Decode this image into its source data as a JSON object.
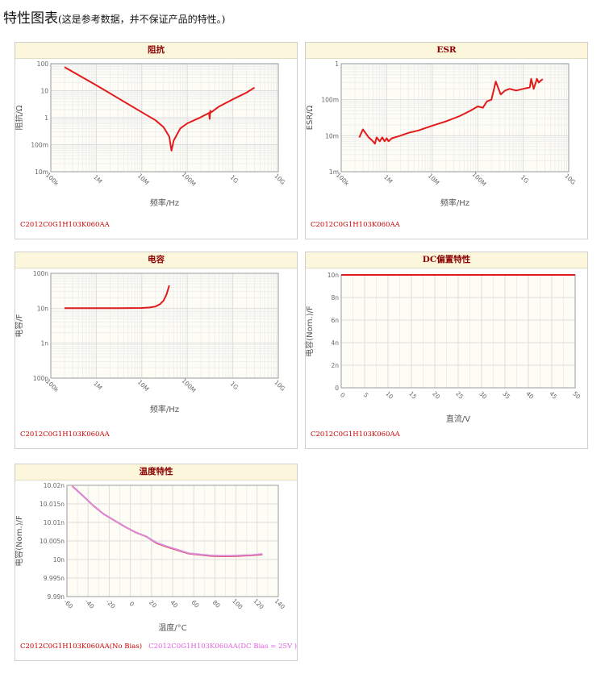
{
  "page": {
    "title": "特性图表",
    "subtitle": "(这是参考数据，并不保证产品的特性。)"
  },
  "colors": {
    "red": "#e11b1b",
    "pink": "#d98bd9",
    "grid": "#dddddd",
    "plot_bg": "#fefdf5"
  },
  "chart_data": [
    {
      "id": "impedance",
      "type": "line",
      "title": "阻抗",
      "xlabel": "频率/Hz",
      "ylabel": "阻抗/Ω",
      "xscale": "log",
      "yscale": "log",
      "xlim": [
        100000,
        10000000000
      ],
      "ylim": [
        0.01,
        100
      ],
      "xticks": [
        100000,
        1000000,
        10000000,
        100000000,
        1000000000,
        10000000000
      ],
      "xtick_labels": [
        "100k",
        "1M",
        "10M",
        "100M",
        "1G",
        "10G"
      ],
      "yticks": [
        0.01,
        0.1,
        1,
        10,
        100
      ],
      "ytick_labels": [
        "10m",
        "100m",
        "1",
        "10",
        "100"
      ],
      "series": [
        {
          "color": "#e11b1b",
          "x": [
            200000,
            1000000,
            3000000,
            10000000,
            20000000,
            30000000,
            40000000,
            45000000,
            50000000,
            70000000,
            100000000,
            200000000,
            300000000,
            310000000,
            320000000,
            330000000,
            500000000,
            1000000000,
            2000000000,
            3000000000
          ],
          "y": [
            75,
            16,
            5.3,
            1.6,
            0.8,
            0.45,
            0.2,
            0.06,
            0.14,
            0.4,
            0.62,
            1.05,
            1.5,
            0.9,
            1.8,
            1.55,
            2.6,
            4.8,
            8.5,
            13
          ]
        }
      ],
      "part_number": "C2012C0G1H103K060AA"
    },
    {
      "id": "esr",
      "type": "line",
      "title": "ESR",
      "xlabel": "频率/Hz",
      "ylabel": "ESR/Ω",
      "xscale": "log",
      "yscale": "log",
      "xlim": [
        100000,
        10000000000
      ],
      "ylim": [
        0.001,
        1
      ],
      "xticks": [
        100000,
        1000000,
        10000000,
        100000000,
        1000000000,
        10000000000
      ],
      "xtick_labels": [
        "100k",
        "1M",
        "10M",
        "100M",
        "1G",
        "10G"
      ],
      "yticks": [
        0.001,
        0.01,
        0.1,
        1
      ],
      "ytick_labels": [
        "1m",
        "10m",
        "100m",
        "1"
      ],
      "series": [
        {
          "color": "#e11b1b",
          "x": [
            250000,
            300000,
            400000,
            500000,
            550000,
            600000,
            700000,
            800000,
            900000,
            1000000,
            1100000,
            1300000,
            1500000,
            2000000,
            3000000,
            5000000,
            10000000,
            20000000,
            40000000,
            70000000,
            100000000,
            130000000,
            160000000,
            200000000,
            250000000,
            320000000,
            400000000,
            500000000,
            700000000,
            1000000000,
            1400000000,
            1500000000,
            1700000000,
            2000000000,
            2200000000,
            2500000000,
            2700000000
          ],
          "y": [
            0.009,
            0.015,
            0.009,
            0.007,
            0.006,
            0.009,
            0.007,
            0.009,
            0.007,
            0.0085,
            0.007,
            0.0085,
            0.009,
            0.01,
            0.012,
            0.014,
            0.019,
            0.025,
            0.035,
            0.05,
            0.065,
            0.06,
            0.09,
            0.1,
            0.32,
            0.14,
            0.18,
            0.2,
            0.18,
            0.2,
            0.22,
            0.38,
            0.2,
            0.38,
            0.3,
            0.35,
            0.37
          ]
        }
      ],
      "part_number": "C2012C0G1H103K060AA"
    },
    {
      "id": "capacitance",
      "type": "line",
      "title": "电容",
      "xlabel": "频率/Hz",
      "ylabel": "电容/F",
      "xscale": "log",
      "yscale": "log",
      "xlim": [
        100000,
        10000000000
      ],
      "ylim": [
        1e-10,
        1e-07
      ],
      "xticks": [
        100000,
        1000000,
        10000000,
        100000000,
        1000000000,
        10000000000
      ],
      "xtick_labels": [
        "100k",
        "1M",
        "10M",
        "100M",
        "1G",
        "10G"
      ],
      "yticks": [
        1e-10,
        1e-09,
        1e-08,
        1e-07
      ],
      "ytick_labels": [
        "100p",
        "1n",
        "10n",
        "100n"
      ],
      "series": [
        {
          "color": "#e11b1b",
          "x": [
            200000,
            1000000,
            3000000,
            10000000,
            15000000,
            20000000,
            25000000,
            30000000,
            35000000,
            40000000
          ],
          "y": [
            1e-08,
            1e-08,
            1.005e-08,
            1.02e-08,
            1.05e-08,
            1.12e-08,
            1.3e-08,
            1.65e-08,
            2.5e-08,
            4.5e-08
          ]
        }
      ],
      "part_number": "C2012C0G1H103K060AA"
    },
    {
      "id": "dc_bias",
      "type": "line",
      "title": "DC偏置特性",
      "xlabel": "直流/V",
      "ylabel": "电容(Nom.)/F",
      "xscale": "linear",
      "yscale": "linear",
      "xlim": [
        0,
        50
      ],
      "ylim": [
        0,
        1e-08
      ],
      "xticks": [
        0,
        5,
        10,
        15,
        20,
        25,
        30,
        35,
        40,
        45,
        50
      ],
      "xtick_labels": [
        "0",
        "5",
        "10",
        "15",
        "20",
        "25",
        "30",
        "35",
        "40",
        "45",
        "50"
      ],
      "yticks": [
        0,
        2e-09,
        4e-09,
        6e-09,
        8e-09,
        1e-08
      ],
      "ytick_labels": [
        "0",
        "2n",
        "4n",
        "6n",
        "8n",
        "10n"
      ],
      "series": [
        {
          "color": "#e11b1b",
          "x": [
            0,
            50
          ],
          "y": [
            1e-08,
            1e-08
          ]
        }
      ],
      "part_number": "C2012C0G1H103K060AA"
    },
    {
      "id": "temperature",
      "type": "line",
      "title": "温度特性",
      "xlabel": "温度/°C",
      "ylabel": "电容(Nom.)/F",
      "xscale": "linear",
      "yscale": "linear",
      "xlim": [
        -60,
        140
      ],
      "ylim": [
        9.99e-09,
        1.002e-08
      ],
      "xticks": [
        -60,
        -40,
        -20,
        0,
        20,
        40,
        60,
        80,
        100,
        120,
        140
      ],
      "xtick_labels": [
        "-60",
        "-40",
        "-20",
        "0",
        "20",
        "40",
        "60",
        "80",
        "100",
        "120",
        "140"
      ],
      "yticks": [
        9.99e-09,
        9.995e-09,
        1e-08,
        1.0005e-08,
        1.001e-08,
        1.0015e-08,
        1.002e-08
      ],
      "ytick_labels": [
        "9.99n",
        "9.995n",
        "10n",
        "10.005n",
        "10.01n",
        "10.015n",
        "10.02n"
      ],
      "series": [
        {
          "name": "C2012C0G1H103K060AA(No Bias)",
          "color": "#e11b1b",
          "x": [
            -55,
            -45,
            -35,
            -25,
            -15,
            -5,
            5,
            15,
            25,
            35,
            45,
            55,
            65,
            75,
            85,
            95,
            105,
            115,
            125
          ],
          "y": [
            1.00198e-08,
            1.00172e-08,
            1.00145e-08,
            1.00122e-08,
            1.00105e-08,
            1.00088e-08,
            1.00073e-08,
            1.00062e-08,
            1.00044e-08,
            1.00034e-08,
            1.00025e-08,
            1.00016e-08,
            1.00013e-08,
            1.0001e-08,
            1.00009e-08,
            1.00009e-08,
            1.0001e-08,
            1.00011e-08,
            1.00014e-08
          ]
        },
        {
          "name": "C2012C0G1H103K060AA(DC Bias = 25V )",
          "color": "#d98bd9",
          "x": [
            -55,
            -45,
            -35,
            -25,
            -15,
            -5,
            5,
            15,
            25,
            35,
            45,
            55,
            65,
            75,
            85,
            95,
            105,
            115,
            125
          ],
          "y": [
            1.00198e-08,
            1.00172e-08,
            1.00145e-08,
            1.00122e-08,
            1.00105e-08,
            1.00088e-08,
            1.00073e-08,
            1.00062e-08,
            1.00045e-08,
            1.00035e-08,
            1.00026e-08,
            1.00017e-08,
            1.00014e-08,
            1.00011e-08,
            1.0001e-08,
            1.0001e-08,
            1.00011e-08,
            1.00012e-08,
            1.00015e-08
          ]
        }
      ],
      "part_number_no_bias": "C2012C0G1H103K060AA(No Bias)",
      "part_number_bias": "C2012C0G1H103K060AA(DC Bias = 25V )"
    }
  ]
}
